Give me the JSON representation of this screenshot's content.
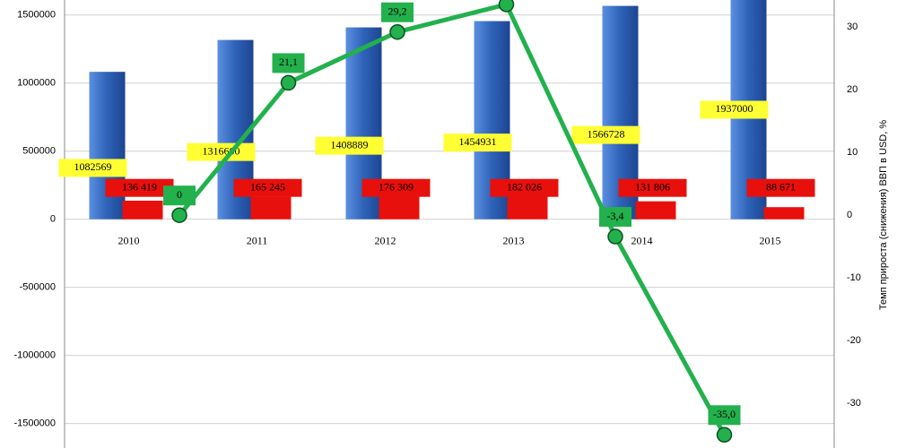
{
  "chart_data": {
    "type": "bar-line",
    "categories": [
      "2010",
      "2011",
      "2012",
      "2013",
      "2014",
      "2015"
    ],
    "series": [
      {
        "color": "#2e62b8",
        "values": [
          1082569,
          1316600,
          1408889,
          1454931,
          1566728,
          1937000
        ]
      },
      {
        "color": "#e8100c",
        "values": [
          136419,
          165245,
          176309,
          182026,
          131806,
          88671
        ],
        "value_labels": [
          "136 419",
          "165 245",
          "176 309",
          "182 026",
          "131 806",
          "88 671"
        ]
      },
      {
        "color": "#22b14c",
        "axis": "y2",
        "values": [
          0,
          21.1,
          29.2,
          33.6,
          -3.4,
          -35.0
        ],
        "value_labels": [
          "0",
          "21,1",
          "29,2",
          null,
          "-3,4",
          "-35,0"
        ]
      }
    ],
    "y2_label": "Темп прироста (снижения) ВВП в USD, %",
    "ylim": [
      -1680000,
      1610000
    ],
    "yticks": [
      -1500000,
      -1000000,
      -500000,
      0,
      500000,
      1000000,
      1500000
    ],
    "y2lim": [
      -37.1,
      34.3
    ],
    "y2ticks": [
      -30,
      -20,
      -10,
      0,
      10,
      20,
      30
    ],
    "grid": true
  }
}
